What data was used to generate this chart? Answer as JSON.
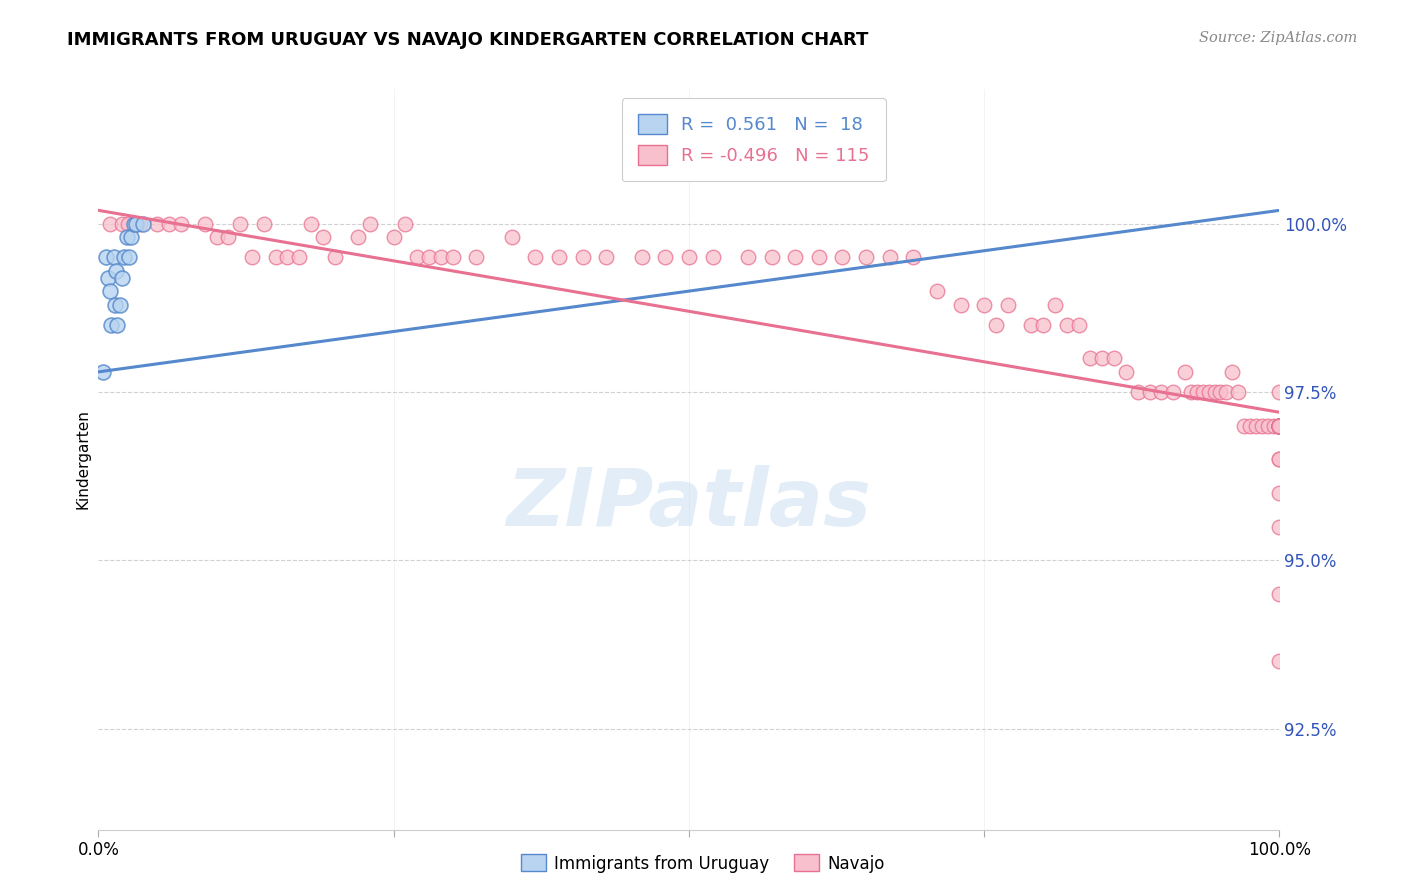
{
  "title": "IMMIGRANTS FROM URUGUAY VS NAVAJO KINDERGARTEN CORRELATION CHART",
  "source": "Source: ZipAtlas.com",
  "ylabel": "Kindergarten",
  "xlim": [
    0,
    100
  ],
  "ylim": [
    91.0,
    102.0
  ],
  "yticks": [
    92.5,
    95.0,
    97.5,
    100.0
  ],
  "xticks": [
    0,
    25,
    50,
    75,
    100
  ],
  "blue_R": 0.561,
  "blue_N": 18,
  "pink_R": -0.496,
  "pink_N": 115,
  "blue_fill": "#B8D4F0",
  "pink_fill": "#F8C0CC",
  "blue_edge": "#5588CC",
  "pink_edge": "#E87090",
  "legend_label_blue": "Immigrants from Uruguay",
  "legend_label_pink": "Navajo",
  "blue_x": [
    0.4,
    0.6,
    0.8,
    1.0,
    1.1,
    1.3,
    1.4,
    1.5,
    1.6,
    1.8,
    2.0,
    2.2,
    2.4,
    2.6,
    2.8,
    3.0,
    3.2,
    3.8
  ],
  "blue_y": [
    97.8,
    99.5,
    99.2,
    99.0,
    98.5,
    99.5,
    98.8,
    99.3,
    98.5,
    98.8,
    99.2,
    99.5,
    99.8,
    99.5,
    99.8,
    100.0,
    100.0,
    100.0
  ],
  "pink_x": [
    1.0,
    2.0,
    2.5,
    3.5,
    5.0,
    6.0,
    7.0,
    9.0,
    10.0,
    11.0,
    12.0,
    13.0,
    14.0,
    15.0,
    16.0,
    17.0,
    18.0,
    19.0,
    20.0,
    22.0,
    23.0,
    25.0,
    26.0,
    27.0,
    28.0,
    29.0,
    30.0,
    32.0,
    35.0,
    37.0,
    39.0,
    41.0,
    43.0,
    46.0,
    48.0,
    50.0,
    52.0,
    55.0,
    57.0,
    59.0,
    61.0,
    63.0,
    65.0,
    67.0,
    69.0,
    71.0,
    73.0,
    75.0,
    76.0,
    77.0,
    79.0,
    80.0,
    81.0,
    82.0,
    83.0,
    84.0,
    85.0,
    86.0,
    87.0,
    88.0,
    89.0,
    90.0,
    91.0,
    92.0,
    92.5,
    93.0,
    93.5,
    94.0,
    94.5,
    95.0,
    95.5,
    96.0,
    96.5,
    97.0,
    97.5,
    98.0,
    98.5,
    99.0,
    99.5,
    100.0,
    100.0,
    100.0,
    100.0,
    100.0,
    100.0,
    100.0,
    100.0,
    100.0,
    100.0,
    100.0,
    100.0,
    100.0,
    100.0,
    100.0,
    100.0,
    100.0,
    100.0,
    100.0,
    100.0,
    100.0,
    100.0,
    100.0,
    100.0,
    100.0,
    100.0,
    100.0,
    100.0,
    100.0,
    100.0,
    100.0,
    100.0
  ],
  "pink_y": [
    100.0,
    100.0,
    100.0,
    100.0,
    100.0,
    100.0,
    100.0,
    100.0,
    99.8,
    99.8,
    100.0,
    99.5,
    100.0,
    99.5,
    99.5,
    99.5,
    100.0,
    99.8,
    99.5,
    99.8,
    100.0,
    99.8,
    100.0,
    99.5,
    99.5,
    99.5,
    99.5,
    99.5,
    99.8,
    99.5,
    99.5,
    99.5,
    99.5,
    99.5,
    99.5,
    99.5,
    99.5,
    99.5,
    99.5,
    99.5,
    99.5,
    99.5,
    99.5,
    99.5,
    99.5,
    99.0,
    98.8,
    98.8,
    98.5,
    98.8,
    98.5,
    98.5,
    98.8,
    98.5,
    98.5,
    98.0,
    98.0,
    98.0,
    97.8,
    97.5,
    97.5,
    97.5,
    97.5,
    97.8,
    97.5,
    97.5,
    97.5,
    97.5,
    97.5,
    97.5,
    97.5,
    97.8,
    97.5,
    97.0,
    97.0,
    97.0,
    97.0,
    97.0,
    97.0,
    97.0,
    97.5,
    97.0,
    97.0,
    97.0,
    97.0,
    97.0,
    97.0,
    97.0,
    97.0,
    97.0,
    97.0,
    97.0,
    97.0,
    97.0,
    97.0,
    97.0,
    97.0,
    97.0,
    97.0,
    97.0,
    97.0,
    97.0,
    97.0,
    97.0,
    97.0,
    96.5,
    96.0,
    96.5,
    95.5,
    94.5,
    93.5
  ],
  "blue_trend_x": [
    0,
    100
  ],
  "blue_trend_y_start": 97.8,
  "blue_trend_y_end": 100.2,
  "pink_trend_y_start": 100.2,
  "pink_trend_y_end": 97.2
}
